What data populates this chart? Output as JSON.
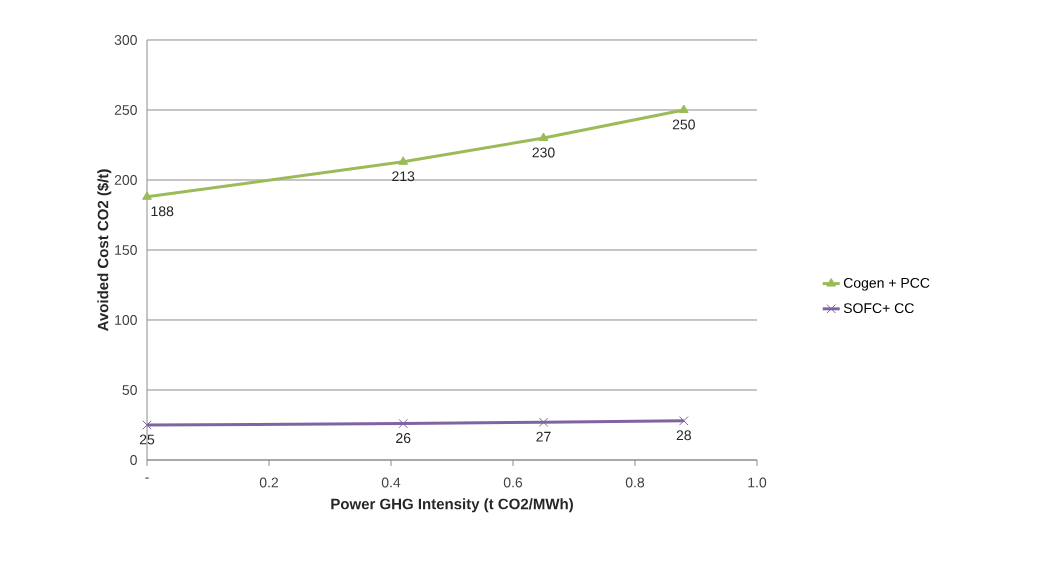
{
  "chart_data": {
    "type": "line",
    "xlabel": "Power GHG Intensity (t CO2/MWh)",
    "ylabel": "Avoided Cost CO2 ($/t)",
    "x": [
      0,
      0.42,
      0.65,
      0.88
    ],
    "series": [
      {
        "name": "Cogen + PCC",
        "color": "#9bbb59",
        "marker": "triangle",
        "values": [
          188,
          213,
          230,
          250
        ]
      },
      {
        "name": "SOFC+ CC",
        "color": "#8064a2",
        "marker": "cross",
        "values": [
          25,
          26,
          27,
          28
        ]
      }
    ],
    "xlim": [
      0,
      1.0
    ],
    "xticks": [
      {
        "value": 0,
        "label": "-"
      },
      0.2,
      0.4,
      0.6,
      0.8,
      {
        "value": 1.0,
        "label": "1.0"
      }
    ],
    "ylim": [
      0,
      300
    ],
    "yticks": [
      0,
      50,
      100,
      150,
      200,
      250,
      300
    ],
    "grid": "y",
    "legend": "right",
    "data_labels": true
  }
}
